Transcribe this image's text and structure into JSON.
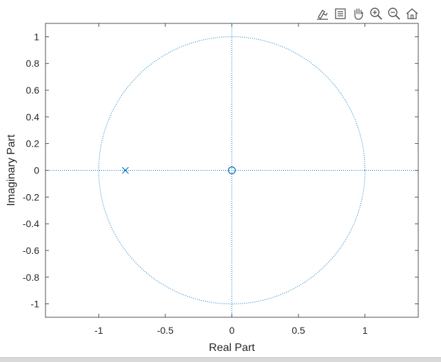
{
  "toolbar": {
    "icons": [
      "brush-icon",
      "data-tips-icon",
      "pan-icon",
      "zoom-in-icon",
      "zoom-out-icon",
      "home-icon"
    ]
  },
  "colors": {
    "series": "#0072bd",
    "axis": "#262626",
    "background": "#ffffff"
  },
  "chart_data": {
    "type": "scatter",
    "title": "",
    "xlabel": "Real Part",
    "ylabel": "Imaginary Part",
    "xlim": [
      -1.4,
      1.4
    ],
    "ylim": [
      -1.1,
      1.1
    ],
    "xticks": [
      -1,
      -0.5,
      0,
      0.5,
      1
    ],
    "xtick_labels": [
      "-1",
      "-0.5",
      "0",
      "0.5",
      "1"
    ],
    "yticks": [
      1,
      0.8,
      0.6,
      0.4,
      0.2,
      0,
      -0.2,
      -0.4,
      -0.6,
      -0.8,
      -1
    ],
    "ytick_labels": [
      "1",
      "0.8",
      "0.6",
      "0.4",
      "0.2",
      "0",
      "-0.2",
      "-0.4",
      "-0.6",
      "-0.8",
      "-1"
    ],
    "grid": false,
    "unit_circle": true,
    "series": [
      {
        "marker": "o",
        "points": [
          {
            "x": 0,
            "y": 0
          }
        ]
      },
      {
        "marker": "x",
        "points": [
          {
            "x": -0.8,
            "y": 0
          }
        ]
      }
    ]
  }
}
